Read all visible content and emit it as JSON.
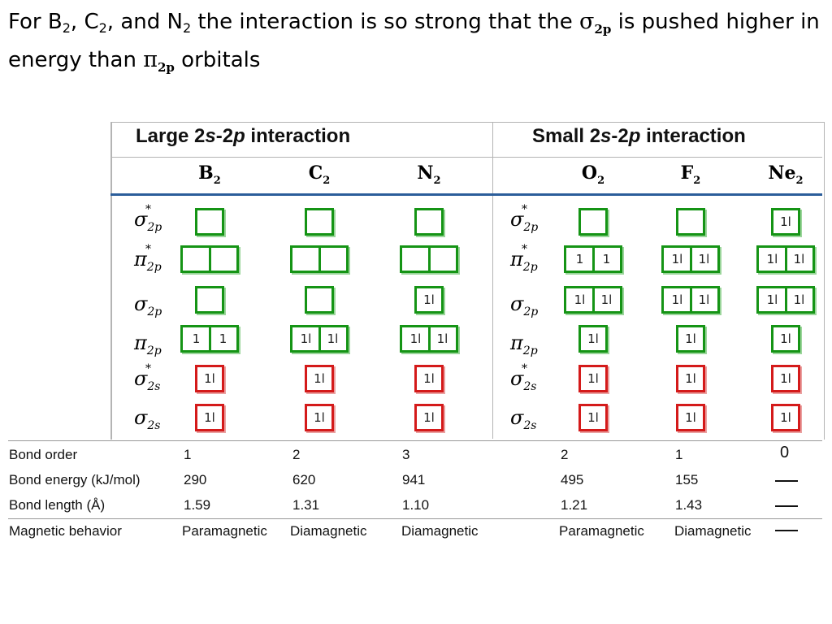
{
  "heading": {
    "part1": "For B",
    "s1": "2",
    "part2": ", C",
    "s2": "2",
    "part3": ", and N",
    "s3": "2",
    "part4": " the interaction is so strong that the ",
    "sigma": "σ",
    "sigma_sub": "2p",
    "part5": " is pushed higher in energy than ",
    "pi": "π",
    "pi_sub": "2p",
    "part6": " orbitals"
  },
  "groups": {
    "large": {
      "pre": "Large 2",
      "s": "s",
      "mid": "-2",
      "p": "p",
      "post": " interaction"
    },
    "small": {
      "pre": "Small 2",
      "s": "s",
      "mid": "-2",
      "p": "p",
      "post": " interaction"
    }
  },
  "molecules": [
    {
      "sym": "B",
      "sub": "2"
    },
    {
      "sym": "C",
      "sub": "2"
    },
    {
      "sym": "N",
      "sub": "2"
    },
    {
      "sym": "O",
      "sub": "2"
    },
    {
      "sym": "F",
      "sub": "2"
    },
    {
      "sym": "Ne",
      "sub": "2"
    }
  ],
  "orbitals": {
    "sigma": "σ",
    "pi": "π",
    "star": "*",
    "s2p": "2p",
    "s2s": "2s"
  },
  "electrons": {
    "up": "↿",
    "pair": "⇃⇂",
    "pair_text": "1l",
    "single_text": "1"
  },
  "properties": {
    "labels": [
      "Bond order",
      "Bond energy (kJ/mol)",
      "Bond length (Å)",
      "Magnetic behavior"
    ],
    "bond_order": [
      "1",
      "2",
      "3",
      "2",
      "1",
      "0"
    ],
    "bond_energy": [
      "290",
      "620",
      "941",
      "495",
      "155"
    ],
    "bond_length": [
      "1.59",
      "1.31",
      "1.10",
      "1.21",
      "1.43"
    ],
    "magnetic": [
      "Paramagnetic",
      "Diamagnetic",
      "Diamagnetic",
      "Paramagnetic",
      "Diamagnetic"
    ]
  },
  "colors": {
    "p_box": "#159415",
    "s_box": "#d41a1a",
    "separator": "#2b5d9a"
  }
}
